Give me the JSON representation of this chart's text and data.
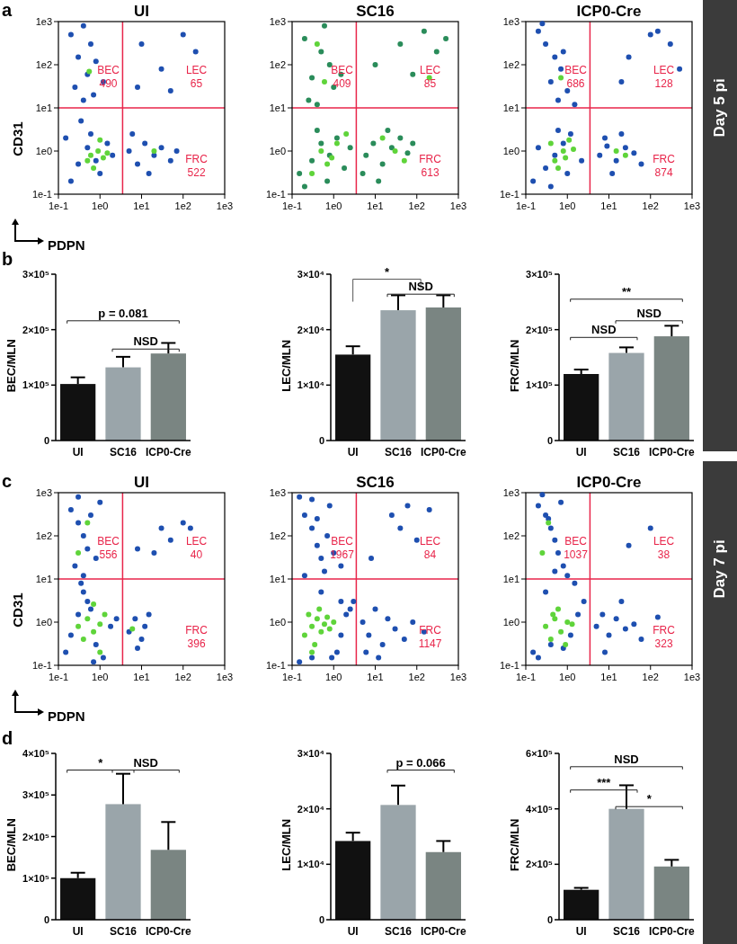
{
  "chart_data": [
    {
      "type": "scatter",
      "title": "UI",
      "xlabel": "PDPN",
      "ylabel": "CD31",
      "log": "xy",
      "marker": "circle",
      "xlim": [
        0.1,
        1000
      ],
      "ylim": [
        0.1,
        1000
      ],
      "xticks": [
        {
          "value": 0.1,
          "label": "1e-1"
        },
        {
          "value": 1,
          "label": "1e0"
        },
        {
          "value": 10,
          "label": "1e1"
        },
        {
          "value": 100,
          "label": "1e2"
        },
        {
          "value": 1000,
          "label": "1e3"
        }
      ],
      "yticks": [
        {
          "value": 0.1,
          "label": "1e-1"
        },
        {
          "value": 1,
          "label": "1e0"
        },
        {
          "value": 10,
          "label": "1e1"
        },
        {
          "value": 100,
          "label": "1e2"
        },
        {
          "value": 1000,
          "label": "1e3"
        }
      ],
      "series": [
        {
          "color": "#1e4fb0",
          "x": [
            0.2,
            0.4,
            0.6,
            0.3,
            0.8,
            0.5,
            1.2,
            0.25,
            0.7,
            0.4,
            0.15,
            0.3,
            0.5,
            0.8,
            1.0,
            1.5,
            0.2,
            0.6,
            2.0,
            0.35,
            5,
            8,
            12,
            20,
            30,
            50,
            70,
            6,
            15,
            10,
            30,
            100,
            200,
            8,
            50
          ],
          "values": [
            500,
            800,
            300,
            150,
            120,
            60,
            40,
            30,
            20,
            15,
            2,
            0.5,
            1.2,
            0.6,
            0.3,
            1.5,
            0.2,
            2.5,
            0.8,
            5,
            1,
            0.5,
            1.5,
            0.8,
            1.2,
            0.6,
            1.0,
            2.5,
            0.3,
            300,
            80,
            500,
            200,
            30,
            25
          ]
        },
        {
          "color": "#5fd43a",
          "x": [
            0.6,
            0.9,
            1.2,
            0.7,
            1.0,
            0.5,
            1.5,
            0.55,
            20
          ],
          "values": [
            0.8,
            1.0,
            0.7,
            0.4,
            1.8,
            0.6,
            0.9,
            70,
            1.0
          ]
        }
      ],
      "ref_lines": [
        {
          "axis": "x",
          "value": 3.5,
          "color": "#e8254a"
        },
        {
          "axis": "y",
          "value": 10,
          "color": "#e8254a"
        }
      ],
      "annotations": [
        "BEC 490",
        "LEC 65",
        "FRC 522",
        "a",
        "Day 5 pi"
      ]
    },
    {
      "type": "scatter",
      "title": "SC16",
      "log": "xy",
      "marker": "circle",
      "xlim": [
        0.1,
        1000
      ],
      "ylim": [
        0.1,
        1000
      ],
      "xticks": [
        {
          "value": 0.1,
          "label": "1e-1"
        },
        {
          "value": 1,
          "label": "1e0"
        },
        {
          "value": 10,
          "label": "1e1"
        },
        {
          "value": 100,
          "label": "1e2"
        },
        {
          "value": 1000,
          "label": "1e3"
        }
      ],
      "yticks": [
        {
          "value": 0.1,
          "label": "1e-1"
        },
        {
          "value": 1,
          "label": "1e0"
        },
        {
          "value": 10,
          "label": "1e1"
        },
        {
          "value": 100,
          "label": "1e2"
        },
        {
          "value": 1000,
          "label": "1e3"
        }
      ],
      "series": [
        {
          "color": "#2a8c5a",
          "x": [
            0.2,
            0.5,
            0.8,
            0.3,
            1.0,
            0.6,
            1.5,
            0.25,
            0.4,
            0.15,
            0.3,
            0.5,
            0.8,
            1.2,
            0.2,
            0.7,
            2.5,
            0.4,
            1.8,
            6,
            9,
            15,
            25,
            40,
            60,
            80,
            5,
            12,
            20,
            150,
            300,
            40,
            80,
            10,
            500
          ],
          "values": [
            400,
            200,
            100,
            50,
            30,
            800,
            60,
            15,
            12,
            0.3,
            0.6,
            1.5,
            0.8,
            2,
            0.15,
            0.2,
            1.2,
            3,
            0.4,
            0.8,
            1.5,
            0.5,
            1.2,
            2,
            0.9,
            1.5,
            0.3,
            0.2,
            3,
            600,
            200,
            300,
            60,
            100,
            400
          ]
        },
        {
          "color": "#5fd43a",
          "x": [
            0.5,
            0.9,
            1.2,
            0.7,
            0.3,
            2,
            0.6,
            0.4,
            30,
            50,
            15,
            200
          ],
          "values": [
            1,
            0.7,
            1.5,
            0.5,
            0.3,
            2.5,
            40,
            300,
            1.0,
            0.6,
            2,
            50
          ]
        }
      ],
      "ref_lines": [
        {
          "axis": "x",
          "value": 3.5,
          "color": "#e8254a"
        },
        {
          "axis": "y",
          "value": 10,
          "color": "#e8254a"
        }
      ],
      "annotations": [
        "BEC 409",
        "LEC 85",
        "FRC 613"
      ]
    },
    {
      "type": "scatter",
      "title": "ICP0-Cre",
      "log": "xy",
      "marker": "circle",
      "xlim": [
        0.1,
        1000
      ],
      "ylim": [
        0.1,
        1000
      ],
      "xticks": [
        {
          "value": 0.1,
          "label": "1e-1"
        },
        {
          "value": 1,
          "label": "1e0"
        },
        {
          "value": 10,
          "label": "1e1"
        },
        {
          "value": 100,
          "label": "1e2"
        },
        {
          "value": 1000,
          "label": "1e3"
        }
      ],
      "yticks": [
        {
          "value": 0.1,
          "label": "1e-1"
        },
        {
          "value": 1,
          "label": "1e0"
        },
        {
          "value": 10,
          "label": "1e1"
        },
        {
          "value": 100,
          "label": "1e2"
        },
        {
          "value": 1000,
          "label": "1e3"
        }
      ],
      "series": [
        {
          "color": "#1e4fb0",
          "x": [
            0.2,
            0.3,
            0.5,
            0.7,
            0.4,
            1.0,
            0.6,
            1.5,
            0.25,
            0.8,
            0.15,
            0.3,
            0.5,
            0.8,
            1.2,
            0.2,
            0.4,
            2.2,
            1.0,
            0.6,
            6,
            9,
            15,
            25,
            40,
            60,
            8,
            20,
            12,
            30,
            100,
            300,
            500,
            20,
            150
          ],
          "values": [
            600,
            300,
            150,
            80,
            40,
            25,
            15,
            12,
            900,
            200,
            0.2,
            0.4,
            0.8,
            1.5,
            2.5,
            1.2,
            0.15,
            0.6,
            0.3,
            3,
            0.8,
            1.3,
            0.6,
            1.2,
            0.9,
            0.5,
            2,
            2.5,
            0.3,
            150,
            500,
            300,
            80,
            40,
            600
          ]
        },
        {
          "color": "#5fd43a",
          "x": [
            0.5,
            0.8,
            1.1,
            0.6,
            0.9,
            1.4,
            0.4,
            15,
            25,
            0.7
          ],
          "values": [
            0.6,
            1,
            1.8,
            0.4,
            0.7,
            1.1,
            1.5,
            1.0,
            0.8,
            50
          ]
        }
      ],
      "ref_lines": [
        {
          "axis": "x",
          "value": 3.5,
          "color": "#e8254a"
        },
        {
          "axis": "y",
          "value": 10,
          "color": "#e8254a"
        }
      ],
      "annotations": [
        "BEC 686",
        "LEC 128",
        "FRC 874"
      ]
    },
    {
      "type": "bar",
      "ylabel": "BEC/MLN",
      "categories": [
        "UI",
        "SC16",
        "ICP0-Cre"
      ],
      "values": [
        102000,
        132000,
        157000
      ],
      "errors": [
        12000,
        19000,
        19000
      ],
      "colors": [
        "#111111",
        "#9aa5aa",
        "#7a8582"
      ],
      "ylim": [
        0,
        300000
      ],
      "yticks": [
        {
          "value": 0,
          "label": "0"
        },
        {
          "value": 100000,
          "label": "1×10⁵"
        },
        {
          "value": 200000,
          "label": "2×10⁵"
        },
        {
          "value": 300000,
          "label": "3×10⁵"
        }
      ],
      "annotations": [
        "b",
        "p = 0.081",
        "NSD"
      ]
    },
    {
      "type": "bar",
      "ylabel": "LEC/MLN",
      "categories": [
        "UI",
        "SC16",
        "ICP0-Cre"
      ],
      "values": [
        15500,
        23500,
        24000
      ],
      "errors": [
        1500,
        2700,
        2200
      ],
      "colors": [
        "#111111",
        "#9aa5aa",
        "#7a8582"
      ],
      "ylim": [
        0,
        30000
      ],
      "yticks": [
        {
          "value": 0,
          "label": "0"
        },
        {
          "value": 10000,
          "label": "1×10⁴"
        },
        {
          "value": 20000,
          "label": "2×10⁴"
        },
        {
          "value": 30000,
          "label": "3×10⁴"
        }
      ],
      "annotations": [
        "*",
        "NSD"
      ]
    },
    {
      "type": "bar",
      "ylabel": "FRC/MLN",
      "categories": [
        "UI",
        "SC16",
        "ICP0-Cre"
      ],
      "values": [
        120000,
        158000,
        188000
      ],
      "errors": [
        8000,
        10000,
        19000
      ],
      "colors": [
        "#111111",
        "#9aa5aa",
        "#7a8582"
      ],
      "ylim": [
        0,
        300000
      ],
      "yticks": [
        {
          "value": 0,
          "label": "0"
        },
        {
          "value": 100000,
          "label": "1×10⁵"
        },
        {
          "value": 200000,
          "label": "2×10⁵"
        },
        {
          "value": 300000,
          "label": "3×10⁵"
        }
      ],
      "annotations": [
        "**",
        "NSD",
        "NSD"
      ]
    },
    {
      "type": "scatter",
      "title": "UI",
      "xlabel": "PDPN",
      "ylabel": "CD31",
      "log": "xy",
      "marker": "circle",
      "xlim": [
        0.1,
        1000
      ],
      "ylim": [
        0.1,
        1000
      ],
      "xticks": [
        {
          "value": 0.1,
          "label": "1e-1"
        },
        {
          "value": 1,
          "label": "1e0"
        },
        {
          "value": 10,
          "label": "1e1"
        },
        {
          "value": 100,
          "label": "1e2"
        },
        {
          "value": 1000,
          "label": "1e3"
        }
      ],
      "yticks": [
        {
          "value": 0.1,
          "label": "1e-1"
        },
        {
          "value": 1,
          "label": "1e0"
        },
        {
          "value": 10,
          "label": "1e1"
        },
        {
          "value": 100,
          "label": "1e2"
        },
        {
          "value": 1000,
          "label": "1e3"
        }
      ],
      "series": [
        {
          "color": "#1e4fb0",
          "x": [
            0.2,
            0.3,
            0.4,
            0.5,
            0.3,
            0.6,
            0.8,
            0.25,
            0.4,
            1.0,
            0.15,
            0.2,
            0.3,
            0.5,
            0.8,
            1.2,
            1.8,
            2.5,
            0.4,
            0.6,
            5,
            7,
            10,
            15,
            8,
            12,
            30,
            50,
            100,
            150,
            8,
            20,
            0.7,
            0.35
          ],
          "values": [
            400,
            200,
            100,
            50,
            800,
            300,
            30,
            20,
            12,
            600,
            0.2,
            0.5,
            1.5,
            3,
            0.3,
            0.15,
            0.8,
            1.2,
            5,
            2,
            0.6,
            1.2,
            0.4,
            1.5,
            0.25,
            0.8,
            150,
            80,
            200,
            150,
            50,
            40,
            0.12,
            8
          ]
        },
        {
          "color": "#5fd43a",
          "x": [
            0.3,
            0.5,
            0.7,
            1.0,
            0.4,
            0.7,
            1.3,
            1.0,
            0.5,
            6,
            0.3
          ],
          "values": [
            0.8,
            1.2,
            0.6,
            0.9,
            0.4,
            2.6,
            1.5,
            0.2,
            200,
            0.7,
            40
          ]
        }
      ],
      "ref_lines": [
        {
          "axis": "x",
          "value": 3.5,
          "color": "#e8254a"
        },
        {
          "axis": "y",
          "value": 10,
          "color": "#e8254a"
        }
      ],
      "annotations": [
        "BEC 556",
        "LEC 40",
        "FRC 396",
        "c",
        "Day 7 pi"
      ]
    },
    {
      "type": "scatter",
      "title": "SC16",
      "log": "xy",
      "marker": "circle",
      "xlim": [
        0.1,
        1000
      ],
      "ylim": [
        0.1,
        1000
      ],
      "xticks": [
        {
          "value": 0.1,
          "label": "1e-1"
        },
        {
          "value": 1,
          "label": "1e0"
        },
        {
          "value": 10,
          "label": "1e1"
        },
        {
          "value": 100,
          "label": "1e2"
        },
        {
          "value": 1000,
          "label": "1e3"
        }
      ],
      "yticks": [
        {
          "value": 0.1,
          "label": "1e-1"
        },
        {
          "value": 1,
          "label": "1e0"
        },
        {
          "value": 10,
          "label": "1e1"
        },
        {
          "value": 100,
          "label": "1e2"
        },
        {
          "value": 1000,
          "label": "1e3"
        }
      ],
      "series": [
        {
          "color": "#1e4fb0",
          "x": [
            0.15,
            0.2,
            0.3,
            0.4,
            0.5,
            0.6,
            0.8,
            0.3,
            0.4,
            0.7,
            1.0,
            0.2,
            0.5,
            1.5,
            2.5,
            0.15,
            0.3,
            1.2,
            1.5,
            2.0,
            3,
            5,
            7,
            10,
            15,
            20,
            30,
            50,
            80,
            150,
            6,
            12,
            25,
            40,
            60,
            100,
            200,
            8,
            0.9,
            1.5
          ],
          "values": [
            800,
            300,
            150,
            60,
            30,
            15,
            500,
            700,
            250,
            100,
            40,
            12,
            5,
            3,
            2,
            0.12,
            0.15,
            0.2,
            0.5,
            1.5,
            3,
            1,
            0.5,
            2,
            0.3,
            1.2,
            0.7,
            0.4,
            1,
            0.6,
            0.2,
            0.15,
            300,
            150,
            500,
            80,
            400,
            30,
            0.15,
            20
          ]
        },
        {
          "color": "#5fd43a",
          "x": [
            0.2,
            0.3,
            0.4,
            0.5,
            0.6,
            0.8,
            0.25,
            0.35,
            0.45,
            0.7,
            1.0,
            0.3
          ],
          "values": [
            0.5,
            0.8,
            1.2,
            0.6,
            0.9,
            0.7,
            1.5,
            0.3,
            2,
            1.3,
            1,
            0.2
          ]
        }
      ],
      "ref_lines": [
        {
          "axis": "x",
          "value": 3.5,
          "color": "#e8254a"
        },
        {
          "axis": "y",
          "value": 10,
          "color": "#e8254a"
        }
      ],
      "annotations": [
        "BEC 1967",
        "LEC 84",
        "FRC 1147"
      ]
    },
    {
      "type": "scatter",
      "title": "ICP0-Cre",
      "log": "xy",
      "marker": "circle",
      "xlim": [
        0.1,
        1000
      ],
      "ylim": [
        0.1,
        1000
      ],
      "xticks": [
        {
          "value": 0.1,
          "label": "1e-1"
        },
        {
          "value": 1,
          "label": "1e0"
        },
        {
          "value": 10,
          "label": "1e1"
        },
        {
          "value": 100,
          "label": "1e2"
        },
        {
          "value": 1000,
          "label": "1e3"
        }
      ],
      "yticks": [
        {
          "value": 0.1,
          "label": "1e-1"
        },
        {
          "value": 1,
          "label": "1e0"
        },
        {
          "value": 10,
          "label": "1e1"
        },
        {
          "value": 100,
          "label": "1e2"
        },
        {
          "value": 1000,
          "label": "1e3"
        }
      ],
      "series": [
        {
          "color": "#1e4fb0",
          "x": [
            0.2,
            0.3,
            0.4,
            0.5,
            0.6,
            0.8,
            0.25,
            0.35,
            1.0,
            0.7,
            0.15,
            0.2,
            0.4,
            0.8,
            1.2,
            1.8,
            2.5,
            0.3,
            5,
            7,
            10,
            15,
            25,
            40,
            60,
            8,
            20,
            100,
            150,
            30,
            0.5,
            1.5
          ],
          "values": [
            500,
            300,
            150,
            80,
            40,
            20,
            900,
            250,
            12,
            600,
            0.2,
            0.15,
            0.3,
            0.25,
            0.5,
            1.5,
            3,
            5,
            0.8,
            1.5,
            0.5,
            1.2,
            0.7,
            0.9,
            0.4,
            0.2,
            3,
            150,
            1.3,
            60,
            15,
            8
          ]
        },
        {
          "color": "#5fd43a",
          "x": [
            0.3,
            0.5,
            0.7,
            1.0,
            0.4,
            0.6,
            0.9,
            1.3,
            0.45,
            0.35,
            0.25
          ],
          "values": [
            0.8,
            1.2,
            0.6,
            1,
            0.4,
            2,
            0.3,
            0.9,
            1.5,
            200,
            40
          ]
        }
      ],
      "ref_lines": [
        {
          "axis": "x",
          "value": 3.5,
          "color": "#e8254a"
        },
        {
          "axis": "y",
          "value": 10,
          "color": "#e8254a"
        }
      ],
      "annotations": [
        "BEC 1037",
        "LEC 38",
        "FRC 323"
      ]
    },
    {
      "type": "bar",
      "ylabel": "BEC/MLN",
      "categories": [
        "UI",
        "SC16",
        "ICP0-Cre"
      ],
      "values": [
        100000,
        278000,
        168000
      ],
      "errors": [
        13000,
        73000,
        67000
      ],
      "colors": [
        "#111111",
        "#9aa5aa",
        "#7a8582"
      ],
      "ylim": [
        0,
        400000
      ],
      "yticks": [
        {
          "value": 0,
          "label": "0"
        },
        {
          "value": 100000,
          "label": "1×10⁵"
        },
        {
          "value": 200000,
          "label": "2×10⁵"
        },
        {
          "value": 300000,
          "label": "3×10⁵"
        },
        {
          "value": 400000,
          "label": "4×10⁵"
        }
      ],
      "annotations": [
        "d",
        "*",
        "NSD"
      ]
    },
    {
      "type": "bar",
      "ylabel": "LEC/MLN",
      "categories": [
        "UI",
        "SC16",
        "ICP0-Cre"
      ],
      "values": [
        14200,
        20700,
        12200
      ],
      "errors": [
        1500,
        3500,
        2000
      ],
      "colors": [
        "#111111",
        "#9aa5aa",
        "#7a8582"
      ],
      "ylim": [
        0,
        30000
      ],
      "yticks": [
        {
          "value": 0,
          "label": "0"
        },
        {
          "value": 10000,
          "label": "1×10⁴"
        },
        {
          "value": 20000,
          "label": "2×10⁴"
        },
        {
          "value": 30000,
          "label": "3×10⁴"
        }
      ],
      "annotations": [
        "p = 0.066"
      ]
    },
    {
      "type": "bar",
      "ylabel": "FRC/MLN",
      "categories": [
        "UI",
        "SC16",
        "ICP0-Cre"
      ],
      "values": [
        108000,
        400000,
        192000
      ],
      "errors": [
        7000,
        85000,
        24000
      ],
      "colors": [
        "#111111",
        "#9aa5aa",
        "#7a8582"
      ],
      "ylim": [
        0,
        600000
      ],
      "yticks": [
        {
          "value": 0,
          "label": "0"
        },
        {
          "value": 200000,
          "label": "2×10⁵"
        },
        {
          "value": 400000,
          "label": "4×10⁵"
        },
        {
          "value": 600000,
          "label": "6×10⁵"
        }
      ],
      "annotations": [
        "NSD",
        "***",
        "*"
      ]
    }
  ]
}
